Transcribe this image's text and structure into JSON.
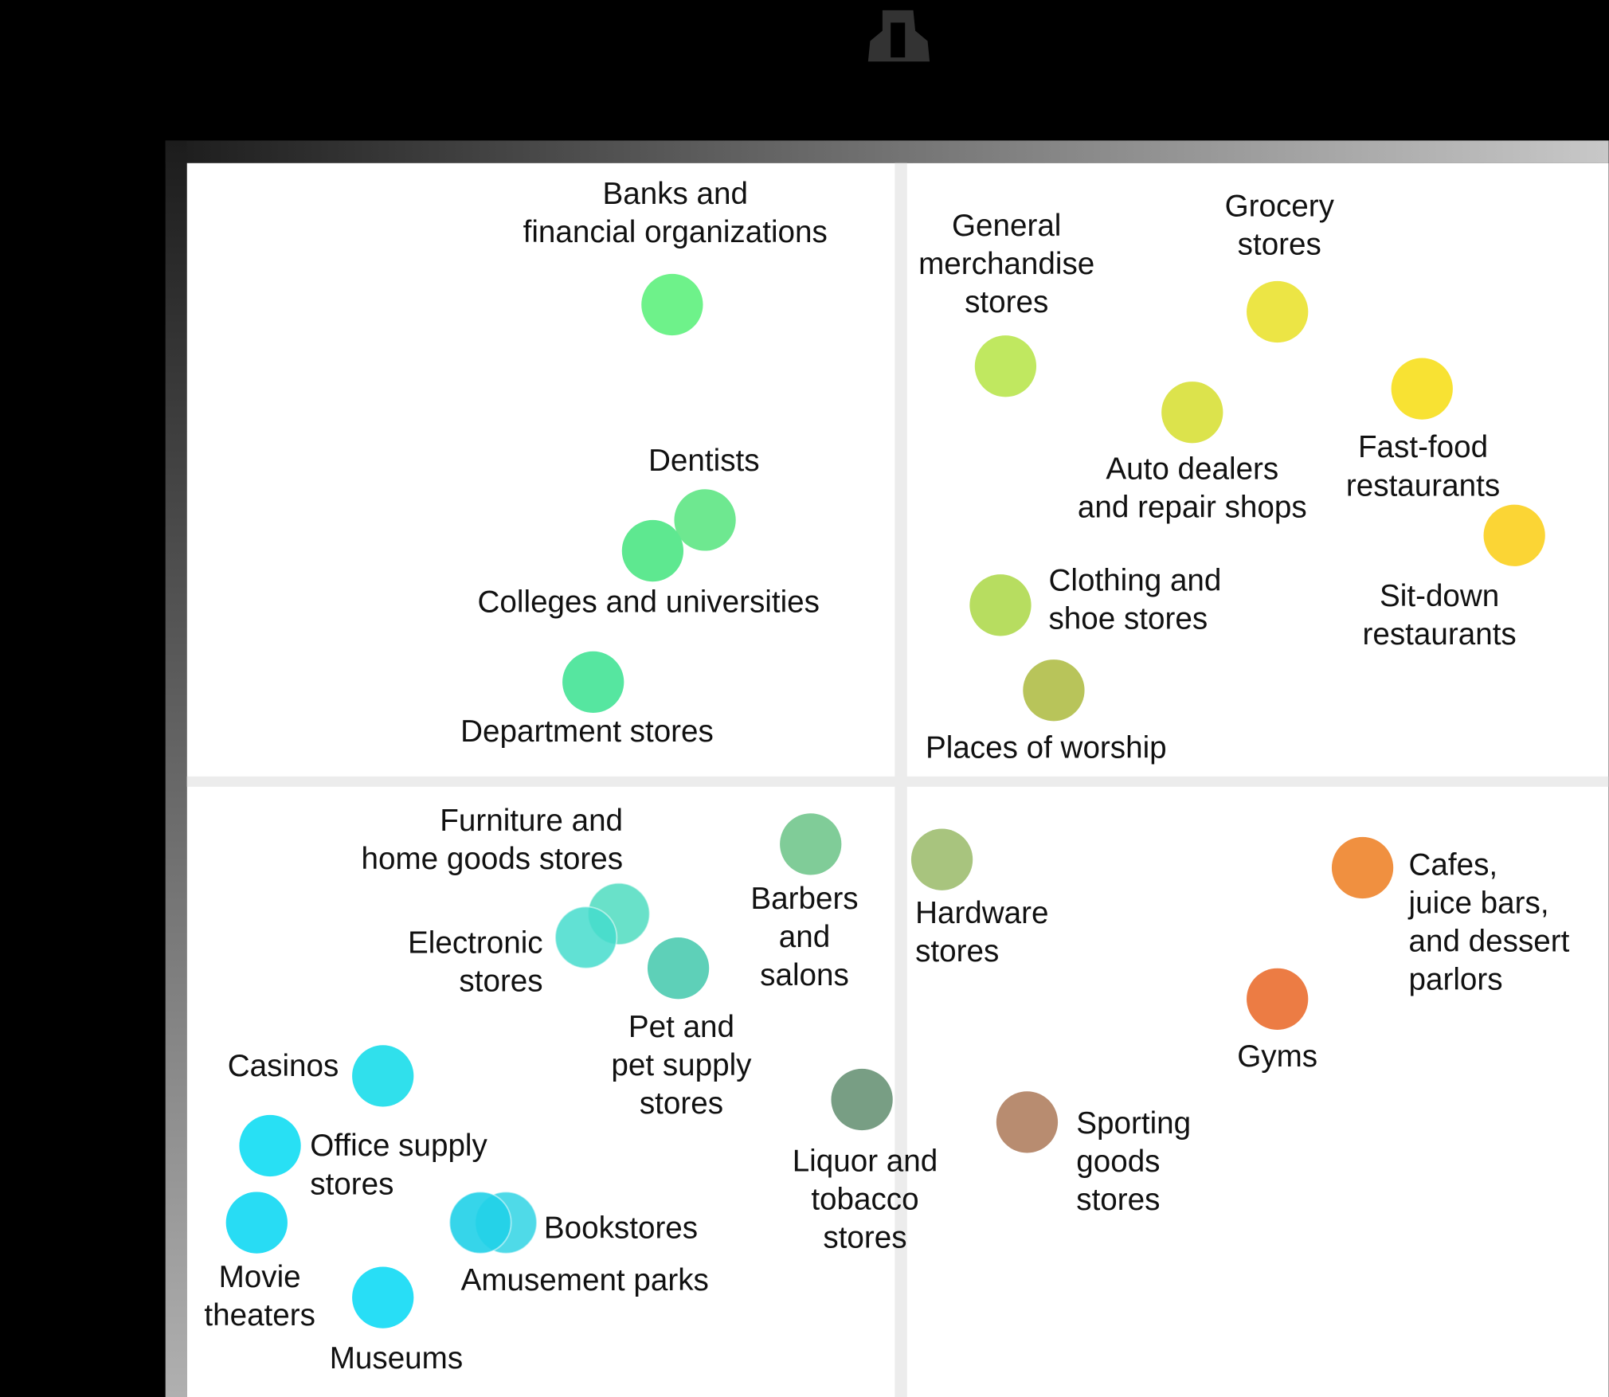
{
  "nodes": [
    {
      "label": [
        "Banks and",
        "financial organizations"
      ],
      "color": "#6ef28a"
    },
    {
      "label": [
        "Dentists"
      ],
      "color": "#6ee890"
    },
    {
      "label": [
        "Colleges and universities"
      ],
      "color": "#5ee890"
    },
    {
      "label": [
        "Department stores"
      ],
      "color": "#56e6a0"
    },
    {
      "label": [
        "General",
        "merchandise",
        "stores"
      ],
      "color": "#c0e860"
    },
    {
      "label": [
        "Grocery",
        "stores"
      ],
      "color": "#ece545"
    },
    {
      "label": [
        "Auto dealers",
        "and repair shops"
      ],
      "color": "#dce34c"
    },
    {
      "label": [
        "Fast-food",
        "restaurants"
      ],
      "color": "#f8e233"
    },
    {
      "label": [
        "Sit-down",
        "restaurants"
      ],
      "color": "#fbd535"
    },
    {
      "label": [
        "Clothing and",
        "shoe stores"
      ],
      "color": "#b7dd60"
    },
    {
      "label": [
        "Places of worship"
      ],
      "color": "#b8c45a"
    },
    {
      "label": [
        "Furniture and",
        "home goods stores"
      ],
      "color": "#4fdcc0"
    },
    {
      "label": [
        "Electronic",
        "stores"
      ],
      "color": "#45dccc"
    },
    {
      "label": [
        "Pet and",
        "pet supply",
        "stores"
      ],
      "color": "#5ed0b8"
    },
    {
      "label": [
        "Barbers",
        "and",
        "salons"
      ],
      "color": "#80cc98"
    },
    {
      "label": [
        "Hardware",
        "stores"
      ],
      "color": "#a8c47e"
    },
    {
      "label": [
        "Cafes,",
        "juice bars,",
        "and dessert",
        "parlors"
      ],
      "color": "#f09040"
    },
    {
      "label": [
        "Gyms"
      ],
      "color": "#ec7c44"
    },
    {
      "label": [
        "Sporting",
        "goods",
        "stores"
      ],
      "color": "#b88c70"
    },
    {
      "label": [
        "Liquor and",
        "tobacco",
        "stores"
      ],
      "color": "#789e84"
    },
    {
      "label": [
        "Casinos"
      ],
      "color": "#30e0ec"
    },
    {
      "label": [
        "Office supply",
        "stores"
      ],
      "color": "#28e0f4"
    },
    {
      "label": [
        "Movie",
        "theaters"
      ],
      "color": "#28dcf4"
    },
    {
      "label": [
        "Museums"
      ],
      "color": "#28def6"
    },
    {
      "label": [
        "Bookstores"
      ],
      "color": "#30d4e4"
    },
    {
      "label": [
        "Amusement parks"
      ],
      "color": "#20d0e8"
    }
  ]
}
